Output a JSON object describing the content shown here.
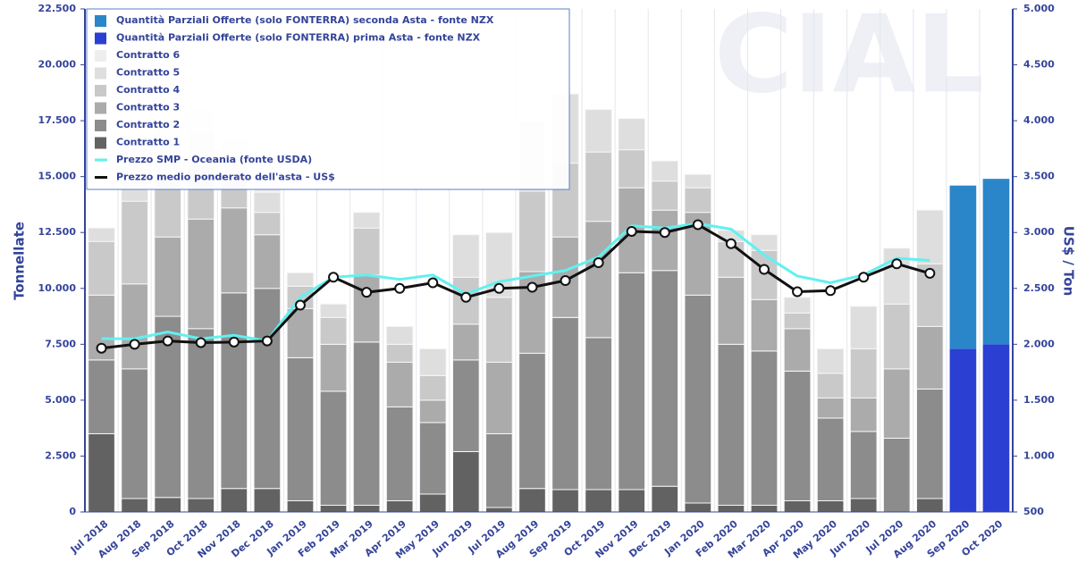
{
  "chart_data": {
    "type": "bar",
    "stacked": true,
    "watermark": "CIAL",
    "y_label": "Tonnellate",
    "y2_label": "US$ / Ton",
    "categories": [
      "Jul 2018",
      "Aug 2018",
      "Sep 2018",
      "Oct 2018",
      "Nov 2018",
      "Dec 2018",
      "Jan 2019",
      "Feb 2019",
      "Mar 2019",
      "Apr 2019",
      "May 2019",
      "Jun 2019",
      "Jul 2019",
      "Aug 2019",
      "Sep 2019",
      "Oct 2019",
      "Nov 2019",
      "Dec 2019",
      "Jan 2020",
      "Feb 2020",
      "Mar 2020",
      "Apr 2020",
      "May 2020",
      "Jun 2020",
      "Jul 2020",
      "Aug 2020",
      "Sep 2020",
      "Oct 2020"
    ],
    "ylim": [
      0,
      22500
    ],
    "yticks": [
      0,
      {
        "value": 2500,
        "label": "2.500"
      },
      {
        "value": 5000,
        "label": "5.000"
      },
      {
        "value": 7500,
        "label": "7.500"
      },
      {
        "value": 10000,
        "label": "10.000"
      },
      {
        "value": 12500,
        "label": "12.500"
      },
      {
        "value": 15000,
        "label": "15.000"
      },
      {
        "value": 17500,
        "label": "17.500"
      },
      {
        "value": 20000,
        "label": "20.000"
      },
      {
        "value": 22500,
        "label": "22.500"
      }
    ],
    "y2lim": [
      500,
      5000
    ],
    "y2ticks": [
      500,
      {
        "value": 1000,
        "label": "1.000"
      },
      {
        "value": 1500,
        "label": "1.500"
      },
      {
        "value": 2000,
        "label": "2.000"
      },
      {
        "value": 2500,
        "label": "2.500"
      },
      {
        "value": 3000,
        "label": "3.000"
      },
      {
        "value": 3500,
        "label": "3.500"
      },
      {
        "value": 4000,
        "label": "4.000"
      },
      {
        "value": 4500,
        "label": "4.500"
      },
      {
        "value": 5000,
        "label": "5.000"
      }
    ],
    "legend": "top-left",
    "series": [
      {
        "name": "Quantità Parziali Offerte (solo FONTERRA) seconda Asta - fonte NZX",
        "type": "bar",
        "color": "#2a86c9",
        "values": [
          null,
          null,
          null,
          null,
          null,
          null,
          null,
          null,
          null,
          null,
          null,
          null,
          null,
          null,
          null,
          null,
          null,
          null,
          null,
          null,
          null,
          null,
          null,
          null,
          null,
          null,
          7300,
          7400
        ]
      },
      {
        "name": "Quantità Parziali Offerte (solo FONTERRA) prima Asta - fonte NZX",
        "type": "bar",
        "color": "#2b3fd2",
        "values": [
          null,
          null,
          null,
          null,
          null,
          null,
          null,
          null,
          null,
          null,
          null,
          null,
          null,
          null,
          null,
          null,
          null,
          null,
          null,
          null,
          null,
          null,
          null,
          null,
          null,
          null,
          7300,
          7500
        ]
      },
      {
        "name": "Contratto 6",
        "type": "bar",
        "color": "#eeeeee",
        "values": [
          0,
          1500,
          1000,
          1000,
          500,
          900,
          0,
          0,
          0,
          0,
          0,
          0,
          0,
          0,
          0,
          0,
          0,
          0,
          0,
          0,
          0,
          0,
          0,
          0,
          0,
          0,
          null,
          null
        ]
      },
      {
        "name": "Contratto 5",
        "type": "bar",
        "color": "#dedede",
        "values": [
          600,
          1100,
          1500,
          1500,
          900,
          900,
          600,
          600,
          700,
          800,
          1200,
          1900,
          2900,
          3100,
          3100,
          1900,
          1400,
          900,
          600,
          500,
          700,
          700,
          1100,
          1900,
          2500,
          2400,
          null,
          null
        ]
      },
      {
        "name": "Contratto 4",
        "type": "bar",
        "color": "#c9c9c9",
        "values": [
          2400,
          3700,
          2700,
          2400,
          1700,
          1000,
          1000,
          1200,
          2100,
          800,
          1100,
          2100,
          2900,
          3600,
          3300,
          3100,
          1700,
          1300,
          1100,
          1600,
          2200,
          700,
          1100,
          2200,
          2900,
          2800,
          null,
          null
        ]
      },
      {
        "name": "Contratto 3",
        "type": "bar",
        "color": "#ababab",
        "values": [
          2900,
          3800,
          3550,
          4900,
          3800,
          2400,
          2200,
          2100,
          3000,
          2000,
          1000,
          1600,
          3200,
          3650,
          3600,
          5200,
          3800,
          2700,
          3700,
          3000,
          2300,
          1900,
          900,
          1500,
          3100,
          2800,
          null,
          null
        ]
      },
      {
        "name": "Contratto 2",
        "type": "bar",
        "color": "#8c8c8c",
        "values": [
          3300,
          5800,
          8100,
          7600,
          8750,
          8950,
          6400,
          5100,
          7300,
          4200,
          3200,
          4100,
          3300,
          6050,
          7700,
          6800,
          9700,
          9650,
          9300,
          7200,
          6900,
          5800,
          3700,
          3000,
          3300,
          4900,
          null,
          null
        ]
      },
      {
        "name": "Contratto 1",
        "type": "bar",
        "color": "#626262",
        "values": [
          3500,
          600,
          650,
          600,
          1050,
          1050,
          500,
          300,
          300,
          500,
          800,
          2700,
          200,
          1050,
          1000,
          1000,
          1000,
          1150,
          400,
          300,
          300,
          500,
          500,
          600,
          0,
          600,
          null,
          null
        ]
      },
      {
        "name": "Prezzo SMP - Oceania (fonte USDA)",
        "type": "line",
        "axis": "y2",
        "color": "#62f0f0",
        "values": [
          2050,
          2050,
          2110,
          2050,
          2080,
          2030,
          2420,
          2600,
          2620,
          2580,
          2620,
          2450,
          2560,
          2610,
          2660,
          2780,
          3060,
          3040,
          3080,
          3030,
          2800,
          2610,
          2550,
          2620,
          2770,
          2750,
          null,
          null
        ]
      },
      {
        "name": "Prezzo medio ponderato dell'asta - US$",
        "type": "line",
        "axis": "y2",
        "color": "#111111",
        "markers": true,
        "values": [
          1965,
          2000,
          2030,
          2015,
          2020,
          2030,
          2350,
          2600,
          2465,
          2500,
          2550,
          2420,
          2500,
          2510,
          2570,
          2730,
          3010,
          3000,
          3070,
          2900,
          2670,
          2470,
          2480,
          2600,
          2720,
          2635,
          null,
          null
        ]
      }
    ]
  }
}
